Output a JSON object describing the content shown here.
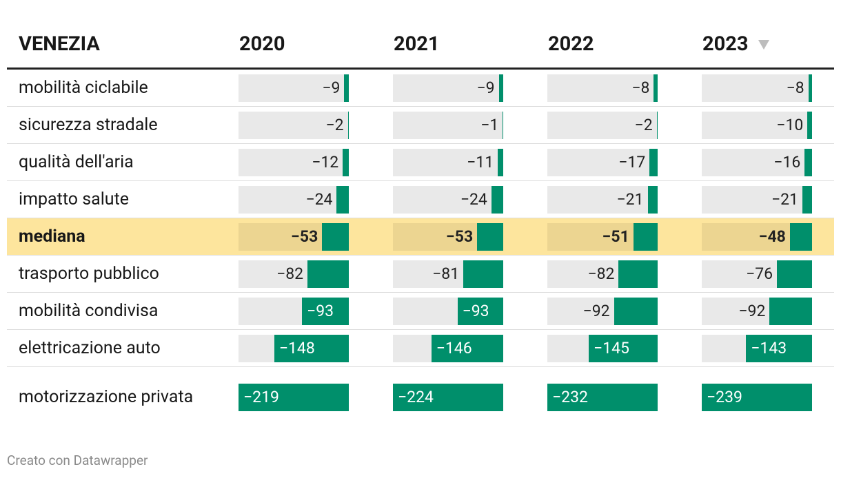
{
  "table": {
    "title": "VENEZIA",
    "columns": [
      "2020",
      "2021",
      "2022",
      "2023"
    ],
    "sorted_column": 3,
    "rows": [
      {
        "label": "mobilità ciclabile",
        "values": [
          -9,
          -9,
          -8,
          -8
        ],
        "value_labels": [
          "−9",
          "−9",
          "−8",
          "−8"
        ]
      },
      {
        "label": "sicurezza stradale",
        "values": [
          -2,
          -1,
          -2,
          -10
        ],
        "value_labels": [
          "−2",
          "−1",
          "−2",
          "−10"
        ]
      },
      {
        "label": "qualità dell'aria",
        "values": [
          -12,
          -11,
          -17,
          -16
        ],
        "value_labels": [
          "−12",
          "−11",
          "−17",
          "−16"
        ]
      },
      {
        "label": "impatto salute",
        "values": [
          -24,
          -24,
          -21,
          -21
        ],
        "value_labels": [
          "−24",
          "−24",
          "−21",
          "−21"
        ]
      },
      {
        "label": "mediana",
        "values": [
          -53,
          -53,
          -51,
          -48
        ],
        "value_labels": [
          "−53",
          "−53",
          "−51",
          "−48"
        ],
        "highlight": true
      },
      {
        "label": "trasporto pubblico",
        "values": [
          -82,
          -81,
          -82,
          -76
        ],
        "value_labels": [
          "−82",
          "−81",
          "−82",
          "−76"
        ]
      },
      {
        "label": "mobilità condivisa",
        "values": [
          -93,
          -93,
          -92,
          -92
        ],
        "value_labels": [
          "−93",
          "−93",
          "−92",
          "−92"
        ]
      },
      {
        "label": "elettricazione auto",
        "values": [
          -148,
          -146,
          -145,
          -143
        ],
        "value_labels": [
          "−148",
          "−146",
          "−145",
          "−143"
        ]
      },
      {
        "label": "motorizzazione privata",
        "values": [
          -219,
          -224,
          -232,
          -239
        ],
        "value_labels": [
          "−219",
          "−224",
          "−232",
          "−239"
        ]
      }
    ],
    "bar_color": "#008f6b",
    "footer": "Creato con Datawrapper"
  }
}
